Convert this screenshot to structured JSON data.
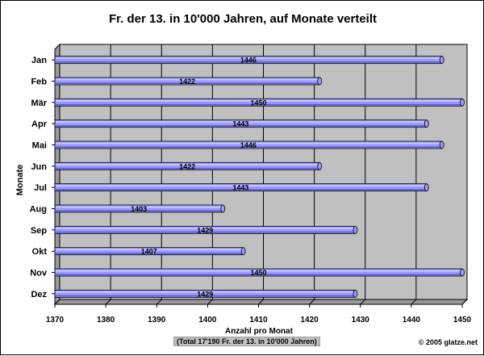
{
  "chart_data": {
    "type": "bar",
    "orientation": "horizontal",
    "title": "Fr. der 13. in 10'000 Jahren, auf Monate verteilt",
    "ylabel": "Monate",
    "xlabel": "Anzahl pro Monat",
    "note": "(Total 17'190 Fr. der 13. in 10'000 Jahren)",
    "credit": "© 2005 glatze.net",
    "categories": [
      "Jan",
      "Feb",
      "Mär",
      "Apr",
      "Mai",
      "Jun",
      "Jul",
      "Aug",
      "Sep",
      "Okt",
      "Nov",
      "Dez"
    ],
    "values": [
      1446,
      1422,
      1450,
      1443,
      1446,
      1422,
      1443,
      1403,
      1429,
      1407,
      1450,
      1429
    ],
    "xlim": [
      1370,
      1450
    ],
    "xticks": [
      1370,
      1380,
      1390,
      1400,
      1410,
      1420,
      1430,
      1440,
      1450
    ],
    "grid": true,
    "colors": {
      "bar": "#9999ff",
      "bar_dark": "#5a5ad0",
      "plot_bg": "#c0c0c0",
      "wall": "#9a9a9a"
    }
  }
}
